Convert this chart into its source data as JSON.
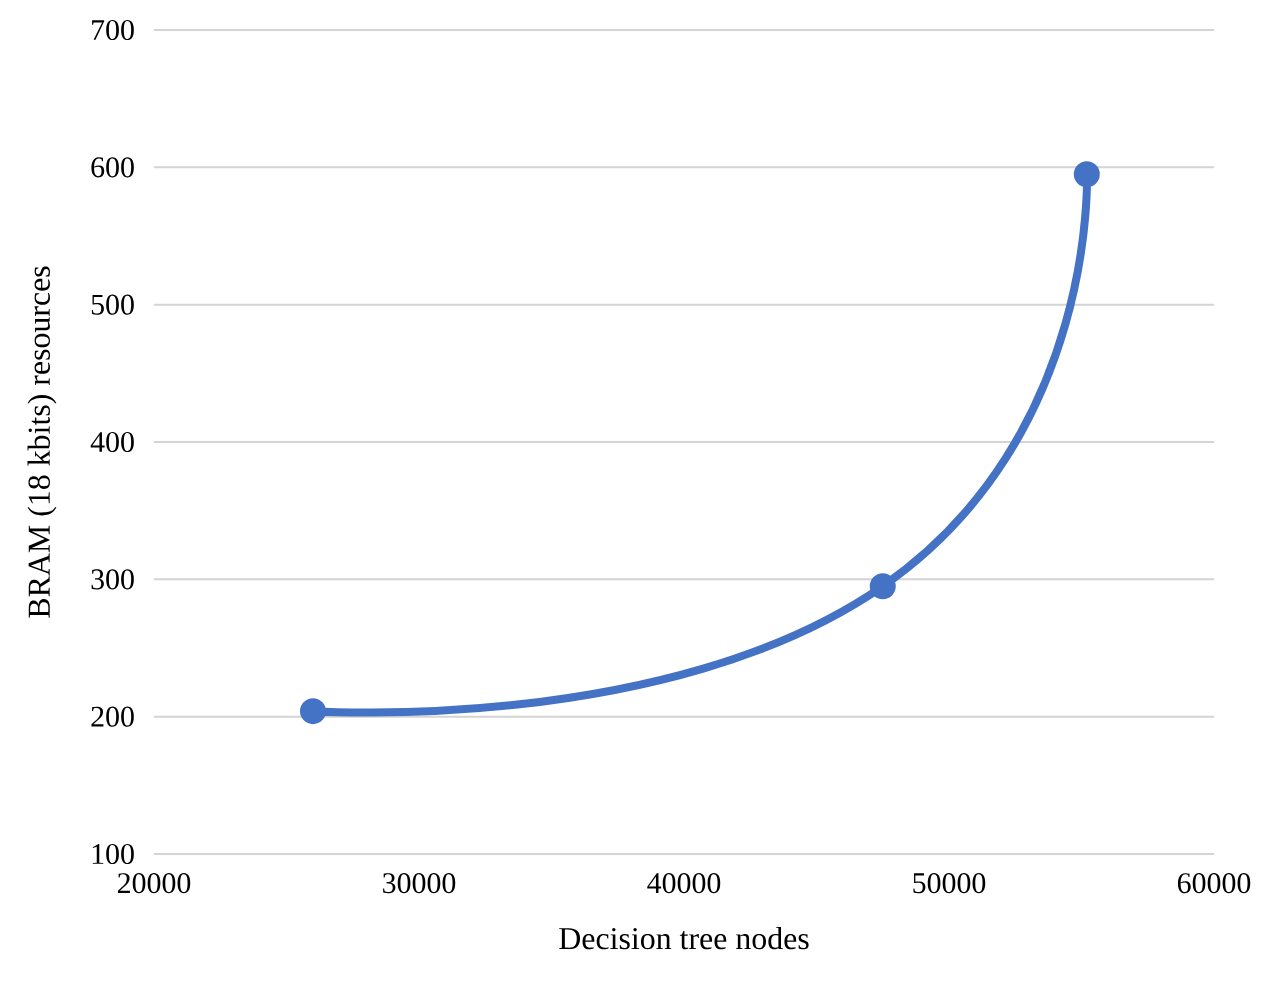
{
  "chart_data": {
    "type": "line",
    "xlabel": "Decision tree nodes",
    "ylabel": "BRAM (18 kbits) resources",
    "x": [
      26000,
      47500,
      55200
    ],
    "series": [
      {
        "color": "#4472c4",
        "values": [
          204,
          295,
          595
        ]
      }
    ],
    "xlim": [
      20000,
      60000
    ],
    "xticks": [
      20000,
      30000,
      40000,
      50000,
      60000
    ],
    "ylim": [
      100,
      700
    ],
    "yticks": [
      100,
      200,
      300,
      400,
      500,
      600,
      700
    ],
    "grid": "y",
    "marker": "circle",
    "line_style": "solid"
  }
}
